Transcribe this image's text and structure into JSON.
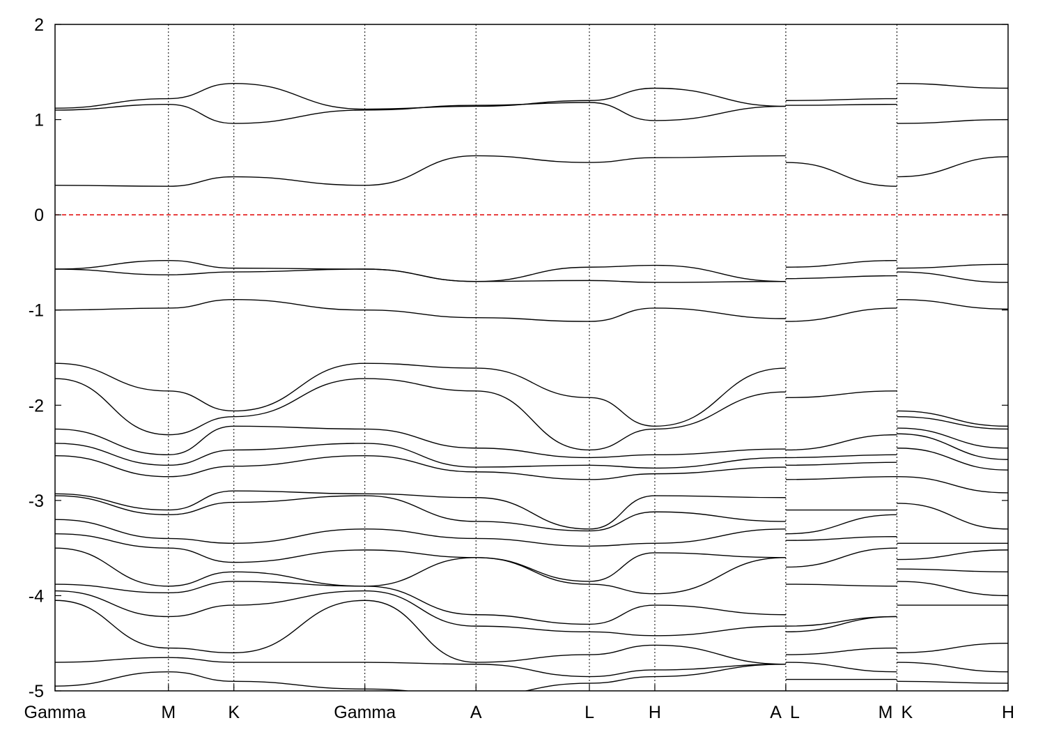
{
  "chart_data": {
    "type": "line",
    "title": "",
    "xlabel": "",
    "ylabel": "",
    "ylim": [
      -5,
      2
    ],
    "y_ticks": [
      -5,
      -4,
      -3,
      -2,
      -1,
      0,
      1,
      2
    ],
    "y_tick_labels": [
      "-5",
      "-4",
      "-3",
      "-2",
      "-1",
      "0",
      "1",
      "2"
    ],
    "x_path": [
      "Gamma",
      "M",
      "K",
      "Gamma",
      "A",
      "L",
      "H",
      "A",
      "L",
      "M",
      "K",
      "H"
    ],
    "x_break_pairs": [
      [
        7,
        8
      ],
      [
        9,
        10
      ]
    ],
    "segment_lengths": [
      1.0,
      0.577,
      1.155,
      0.98,
      1.0,
      0.577,
      1.155,
      0.0,
      0.98,
      0.0,
      0.98
    ],
    "reference_line": {
      "y": 0,
      "color": "#e00000",
      "style": "dashed"
    },
    "line_color": "#000000",
    "grid": "vertical dotted lines at high-symmetry points",
    "legend": "none",
    "series": [
      {
        "values": [
          1.12,
          1.22,
          1.38,
          1.11,
          1.14,
          1.2,
          1.33,
          1.14,
          1.2,
          1.22,
          1.38,
          1.33
        ]
      },
      {
        "values": [
          1.1,
          1.16,
          0.96,
          1.1,
          1.15,
          1.18,
          0.99,
          1.14,
          1.15,
          1.16,
          0.96,
          1.0
        ]
      },
      {
        "values": [
          0.31,
          0.3,
          0.4,
          0.31,
          0.62,
          0.55,
          0.6,
          0.62,
          0.55,
          0.3,
          0.4,
          0.61
        ]
      },
      {
        "values": [
          -0.57,
          -0.48,
          -0.56,
          -0.57,
          -0.7,
          -0.55,
          -0.53,
          -0.7,
          -0.55,
          -0.48,
          -0.56,
          -0.52
        ]
      },
      {
        "values": [
          -0.57,
          -0.63,
          -0.6,
          -0.57,
          -0.7,
          -0.69,
          -0.71,
          -0.7,
          -0.67,
          -0.64,
          -0.6,
          -0.71
        ]
      },
      {
        "values": [
          -1.0,
          -0.98,
          -0.89,
          -1.0,
          -1.08,
          -1.12,
          -0.98,
          -1.09,
          -1.12,
          -0.98,
          -0.89,
          -0.99
        ]
      },
      {
        "values": [
          -1.56,
          -1.85,
          -2.06,
          -1.56,
          -1.61,
          -1.92,
          -2.22,
          -1.61,
          -1.92,
          -1.85,
          -2.06,
          -2.22
        ]
      },
      {
        "values": [
          -1.72,
          -2.31,
          -2.12,
          -1.72,
          -1.85,
          -2.47,
          -2.25,
          -1.86,
          -2.47,
          -2.31,
          -2.12,
          -2.25
        ]
      },
      {
        "values": [
          -2.25,
          -2.52,
          -2.22,
          -2.25,
          -2.45,
          -2.55,
          -2.52,
          -2.46,
          -2.55,
          -2.52,
          -2.24,
          -2.45
        ]
      },
      {
        "values": [
          -2.4,
          -2.63,
          -2.47,
          -2.4,
          -2.65,
          -2.63,
          -2.66,
          -2.55,
          -2.63,
          -2.6,
          -2.3,
          -2.57
        ]
      },
      {
        "values": [
          -2.53,
          -2.75,
          -2.64,
          -2.53,
          -2.7,
          -2.78,
          -2.72,
          -2.65,
          -2.78,
          -2.75,
          -2.45,
          -2.68
        ]
      },
      {
        "values": [
          -2.93,
          -3.1,
          -2.9,
          -2.93,
          -2.97,
          -3.3,
          -2.95,
          -2.97,
          -3.1,
          -3.1,
          -2.75,
          -2.92
        ]
      },
      {
        "values": [
          -2.95,
          -3.15,
          -3.02,
          -2.95,
          -3.22,
          -3.32,
          -3.12,
          -3.22,
          -3.35,
          -3.15,
          -3.03,
          -3.3
        ]
      },
      {
        "values": [
          -3.2,
          -3.4,
          -3.45,
          -3.3,
          -3.4,
          -3.48,
          -3.45,
          -3.3,
          -3.42,
          -3.38,
          -3.45,
          -3.45
        ]
      },
      {
        "values": [
          -3.35,
          -3.5,
          -3.65,
          -3.52,
          -3.6,
          -3.85,
          -3.55,
          -3.6,
          -3.7,
          -3.5,
          -3.62,
          -3.52
        ]
      },
      {
        "values": [
          -3.5,
          -3.9,
          -3.75,
          -3.9,
          -3.6,
          -3.88,
          -3.98,
          -3.6,
          -3.88,
          -3.9,
          -3.72,
          -3.75
        ]
      },
      {
        "values": [
          -3.88,
          -3.97,
          -3.85,
          -3.9,
          -4.2,
          -4.3,
          -4.1,
          -4.2,
          -4.32,
          -4.22,
          -3.85,
          -4.0
        ]
      },
      {
        "values": [
          -3.95,
          -4.22,
          -4.1,
          -3.95,
          -4.32,
          -4.38,
          -4.42,
          -4.32,
          -4.38,
          -4.22,
          -4.1,
          -4.1
        ]
      },
      {
        "values": [
          -4.05,
          -4.55,
          -4.6,
          -4.05,
          -4.7,
          -4.62,
          -4.52,
          -4.72,
          -4.62,
          -4.55,
          -4.6,
          -4.5
        ]
      },
      {
        "values": [
          -4.7,
          -4.65,
          -4.7,
          -4.7,
          -4.72,
          -4.85,
          -4.78,
          -4.72,
          -4.7,
          -4.8,
          -4.7,
          -4.8
        ]
      },
      {
        "values": [
          -4.95,
          -4.8,
          -4.9,
          -4.98,
          -5.05,
          -4.92,
          -4.85,
          -4.72,
          -4.88,
          -4.88,
          -4.9,
          -4.92
        ]
      }
    ]
  }
}
